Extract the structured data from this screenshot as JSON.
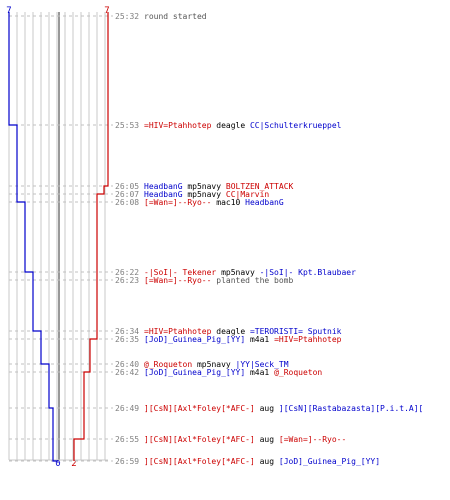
{
  "colors": {
    "blue_team": "#0000cc",
    "red_team": "#cc0000",
    "neutral_text": "#555555",
    "time_text": "#808080",
    "grid_line": "#c8c8c8",
    "axis_line": "#777777",
    "dash_line": "#c0c0c0"
  },
  "header": {
    "blue_start": "7",
    "red_start": "7"
  },
  "footer": {
    "blue_end": "0",
    "red_end": "2"
  },
  "events": [
    {
      "time": "25:32",
      "parts": [
        {
          "t": "round started",
          "c": "n"
        }
      ],
      "blue_alive": 7,
      "red_alive": 7
    },
    {
      "time": "25:53",
      "parts": [
        {
          "t": "=HIV=Ptahhotep",
          "c": "r"
        },
        {
          "t": " deagle ",
          "c": "k"
        },
        {
          "t": "CC|Schulterkrueppel",
          "c": "b"
        }
      ],
      "blue_alive": 6,
      "red_alive": 7
    },
    {
      "time": "26:05",
      "parts": [
        {
          "t": "HeadbanG",
          "c": "b"
        },
        {
          "t": " mp5navy ",
          "c": "k"
        },
        {
          "t": "BOLTZEN_ATTACK",
          "c": "r"
        }
      ],
      "blue_alive": 6,
      "red_alive": 6
    },
    {
      "time": "26:07",
      "parts": [
        {
          "t": "HeadbanG",
          "c": "b"
        },
        {
          "t": " mp5navy ",
          "c": "k"
        },
        {
          "t": "CC|Marvin",
          "c": "r"
        }
      ],
      "blue_alive": 6,
      "red_alive": 5
    },
    {
      "time": "26:08",
      "parts": [
        {
          "t": "[=Wan=]--Ryo--",
          "c": "r"
        },
        {
          "t": " mac10 ",
          "c": "k"
        },
        {
          "t": "HeadbanG",
          "c": "b"
        }
      ],
      "blue_alive": 5,
      "red_alive": 5
    },
    {
      "time": "26:22",
      "parts": [
        {
          "t": "-|SoI|- Tekener",
          "c": "r"
        },
        {
          "t": " mp5navy ",
          "c": "k"
        },
        {
          "t": "-|SoI|- Kpt.Blaubaer",
          "c": "b"
        }
      ],
      "blue_alive": 4,
      "red_alive": 5
    },
    {
      "time": "26:23",
      "parts": [
        {
          "t": "[=Wan=]--Ryo--",
          "c": "r"
        },
        {
          "t": " planted the bomb",
          "c": "n"
        }
      ],
      "blue_alive": 4,
      "red_alive": 5
    },
    {
      "time": "26:34",
      "parts": [
        {
          "t": "=HIV=Ptahhotep",
          "c": "r"
        },
        {
          "t": " deagle ",
          "c": "k"
        },
        {
          "t": "=TERORISTI= Sputnik",
          "c": "b"
        }
      ],
      "blue_alive": 3,
      "red_alive": 5
    },
    {
      "time": "26:35",
      "parts": [
        {
          "t": "[JoD]_Guinea_Pig_[YY]",
          "c": "b"
        },
        {
          "t": " m4a1 ",
          "c": "k"
        },
        {
          "t": "=HIV=Ptahhotep",
          "c": "r"
        }
      ],
      "blue_alive": 3,
      "red_alive": 4
    },
    {
      "time": "26:40",
      "parts": [
        {
          "t": "@_Roqueton",
          "c": "r"
        },
        {
          "t": " mp5navy ",
          "c": "k"
        },
        {
          "t": "|YY|Seck_TM",
          "c": "b"
        }
      ],
      "blue_alive": 2,
      "red_alive": 4
    },
    {
      "time": "26:42",
      "parts": [
        {
          "t": "[JoD]_Guinea_Pig_[YY]",
          "c": "b"
        },
        {
          "t": " m4a1 ",
          "c": "k"
        },
        {
          "t": "@_Roqueton",
          "c": "r"
        }
      ],
      "blue_alive": 2,
      "red_alive": 3
    },
    {
      "time": "26:49",
      "parts": [
        {
          "t": "][CsN][Axl*Foley[*AFC-]",
          "c": "r"
        },
        {
          "t": " aug ",
          "c": "k"
        },
        {
          "t": "][CsN][Rastabazasta][P.i.t.A][",
          "c": "b"
        }
      ],
      "blue_alive": 1,
      "red_alive": 3
    },
    {
      "time": "26:55",
      "parts": [
        {
          "t": "][CsN][Axl*Foley[*AFC-]",
          "c": "r"
        },
        {
          "t": " aug ",
          "c": "k"
        },
        {
          "t": "[=Wan=]--Ryo--",
          "c": "r"
        }
      ],
      "blue_alive": 1,
      "red_alive": 2
    },
    {
      "time": "26:59",
      "parts": [
        {
          "t": "][CsN][Axl*Foley[*AFC-]",
          "c": "r"
        },
        {
          "t": " aug ",
          "c": "k"
        },
        {
          "t": "[JoD]_Guinea_Pig_[YY]",
          "c": "b"
        }
      ],
      "blue_alive": 0,
      "red_alive": 2
    }
  ]
}
